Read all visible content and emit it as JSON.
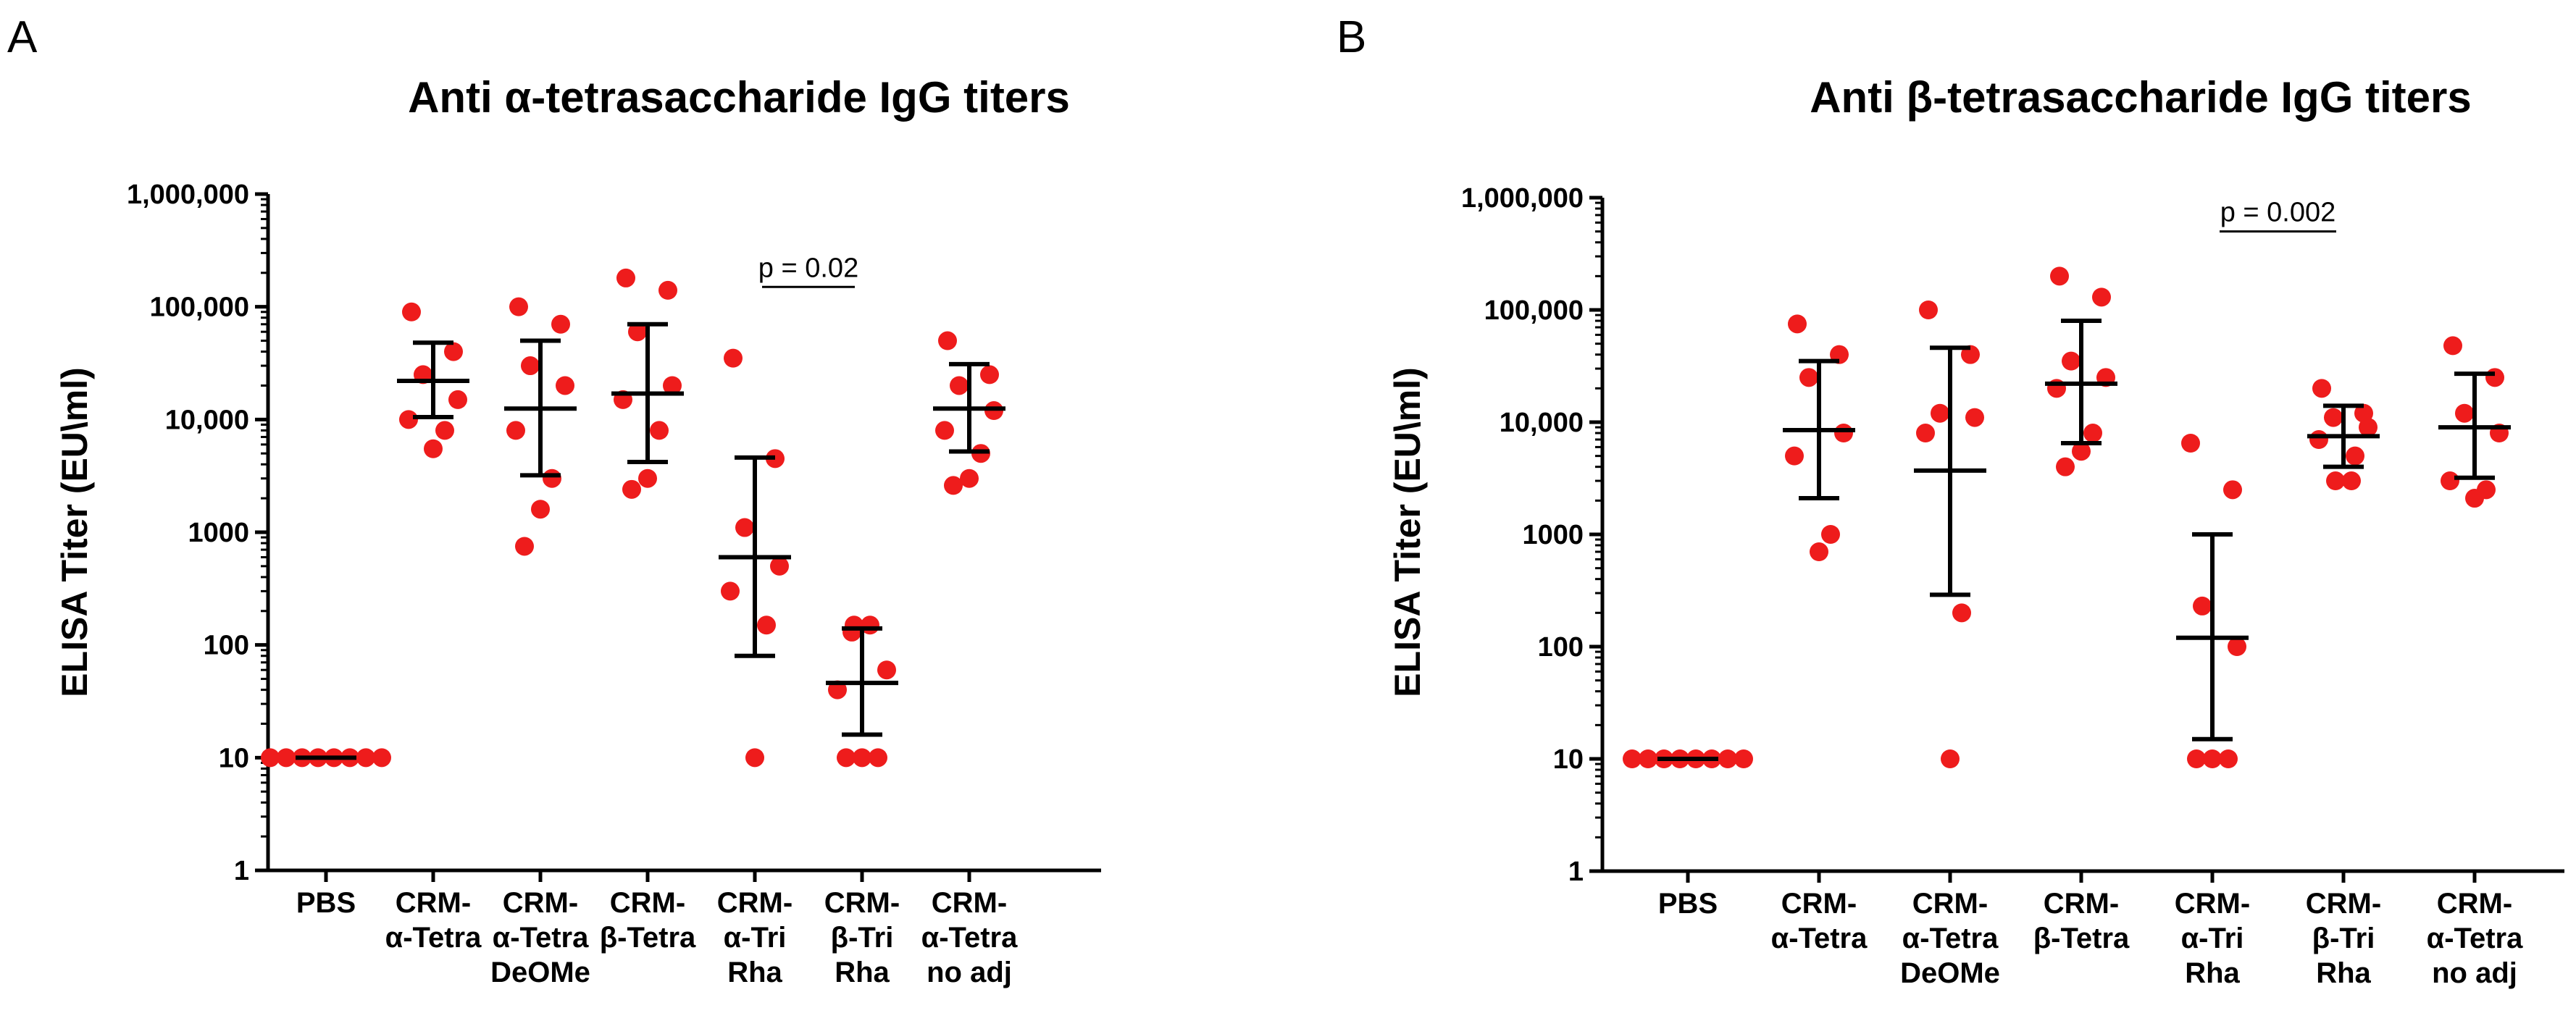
{
  "figure": {
    "panels": [
      "A",
      "B"
    ]
  },
  "chart_data": [
    {
      "panel": "A",
      "type": "scatter",
      "subtype": "dot-plot-with-error-bars",
      "title": "Anti α-tetrasaccharide IgG titers",
      "xlabel": "",
      "ylabel": "ELISA Titer (EU\\ml)",
      "yscale": "log",
      "ylim": [
        1,
        1000000
      ],
      "yticks": [
        1,
        10,
        100,
        1000,
        10000,
        100000,
        1000000
      ],
      "yticklabels": [
        "1",
        "10",
        "100",
        "1000",
        "10,000",
        "100,000",
        "1,000,000"
      ],
      "grid": false,
      "marker_color": "#ee1c1c",
      "groups": [
        {
          "label_lines": [
            "PBS"
          ],
          "points": [
            10,
            10,
            10,
            10,
            10,
            10,
            10,
            10
          ],
          "median": 10,
          "low": null,
          "high": null
        },
        {
          "label_lines": [
            "CRM-",
            "α-Tetra"
          ],
          "points": [
            90000,
            40000,
            25000,
            15000,
            10000,
            8000,
            5500
          ],
          "median": 22000,
          "low": 10500,
          "high": 48000
        },
        {
          "label_lines": [
            "CRM-",
            "α-Tetra",
            "DeOMe"
          ],
          "points": [
            100000,
            70000,
            30000,
            20000,
            8000,
            3000,
            1600,
            750
          ],
          "median": 12500,
          "low": 3200,
          "high": 50000
        },
        {
          "label_lines": [
            "CRM-",
            "β-Tetra"
          ],
          "points": [
            180000,
            140000,
            60000,
            20000,
            15000,
            8000,
            3000,
            2400
          ],
          "median": 17000,
          "low": 4200,
          "high": 70000
        },
        {
          "label_lines": [
            "CRM-",
            "α-Tri",
            "Rha"
          ],
          "points": [
            35000,
            4500,
            1100,
            500,
            300,
            150,
            10
          ],
          "median": 600,
          "low": 80,
          "high": 4600
        },
        {
          "label_lines": [
            "CRM-",
            "β-Tri",
            "Rha"
          ],
          "points": [
            150,
            150,
            130,
            60,
            40,
            10,
            10,
            10
          ],
          "median": 46,
          "low": 16,
          "high": 140
        },
        {
          "label_lines": [
            "CRM-",
            "α-Tetra",
            "no adj"
          ],
          "points": [
            50000,
            25000,
            20000,
            12000,
            8000,
            5000,
            3000,
            2600
          ],
          "median": 12500,
          "low": 5200,
          "high": 31000
        }
      ],
      "annotation": {
        "text": "p = 0.02",
        "from_group": 4,
        "to_group": 5,
        "y": 150000
      }
    },
    {
      "panel": "B",
      "type": "scatter",
      "subtype": "dot-plot-with-error-bars",
      "title": "Anti β-tetrasaccharide IgG titers",
      "xlabel": "",
      "ylabel": "ELISA Titer (EU\\ml)",
      "yscale": "log",
      "ylim": [
        1,
        1000000
      ],
      "yticks": [
        1,
        10,
        100,
        1000,
        10000,
        100000,
        1000000
      ],
      "yticklabels": [
        "1",
        "10",
        "100",
        "1000",
        "10,000",
        "100,000",
        "1,000,000"
      ],
      "grid": false,
      "marker_color": "#ee1c1c",
      "groups": [
        {
          "label_lines": [
            "PBS"
          ],
          "points": [
            10,
            10,
            10,
            10,
            10,
            10,
            10,
            10
          ],
          "median": 10,
          "low": null,
          "high": null
        },
        {
          "label_lines": [
            "CRM-",
            "α-Tetra"
          ],
          "points": [
            75000,
            40000,
            25000,
            8000,
            5000,
            1000,
            700
          ],
          "median": 8500,
          "low": 2100,
          "high": 35000
        },
        {
          "label_lines": [
            "CRM-",
            "α-Tetra",
            "DeOMe"
          ],
          "points": [
            100000,
            40000,
            12000,
            11000,
            8000,
            200,
            10
          ],
          "median": 3700,
          "low": 290,
          "high": 46000
        },
        {
          "label_lines": [
            "CRM-",
            "β-Tetra"
          ],
          "points": [
            200000,
            130000,
            35000,
            25000,
            20000,
            8000,
            5500,
            4000
          ],
          "median": 22000,
          "low": 6500,
          "high": 80000
        },
        {
          "label_lines": [
            "CRM-",
            "α-Tri",
            "Rha"
          ],
          "points": [
            6500,
            2500,
            230,
            100,
            10,
            10,
            10
          ],
          "median": 120,
          "low": 15,
          "high": 1000
        },
        {
          "label_lines": [
            "CRM-",
            "β-Tri",
            "Rha"
          ],
          "points": [
            20000,
            12000,
            11000,
            9000,
            7000,
            5000,
            3000,
            3000
          ],
          "median": 7500,
          "low": 4000,
          "high": 14000
        },
        {
          "label_lines": [
            "CRM-",
            "α-Tetra",
            "no adj"
          ],
          "points": [
            48000,
            25000,
            12000,
            8000,
            3000,
            2500,
            2100
          ],
          "median": 9000,
          "low": 3200,
          "high": 27000
        }
      ],
      "annotation": {
        "text": "p = 0.002",
        "from_group": 4,
        "to_group": 5,
        "y": 500000
      }
    }
  ]
}
